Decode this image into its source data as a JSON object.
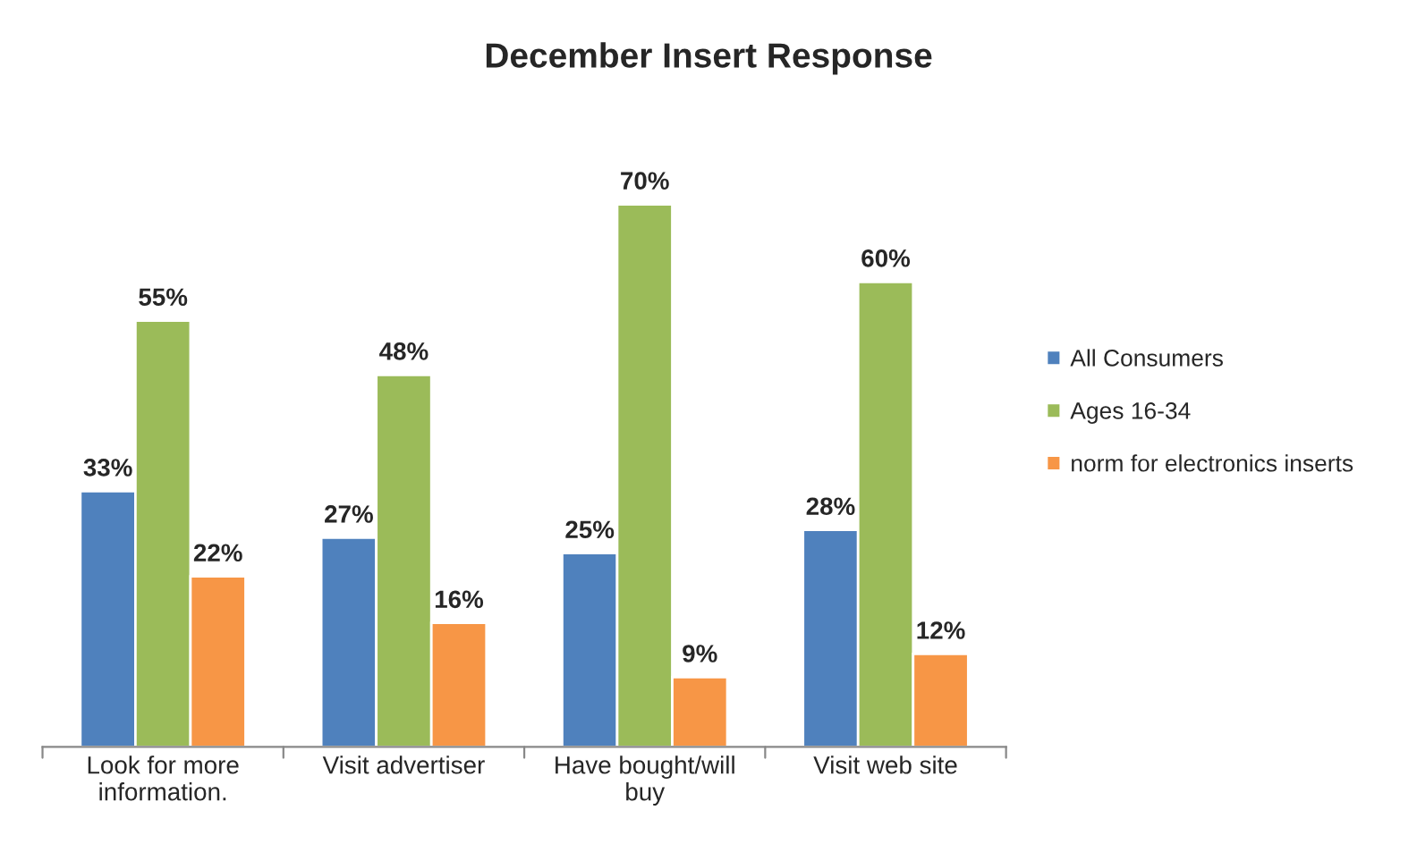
{
  "chart_data": {
    "type": "bar",
    "title": "December Insert Response",
    "categories": [
      "Look for more\ninformation.",
      "Visit advertiser",
      "Have bought/will\nbuy",
      "Visit web site"
    ],
    "series": [
      {
        "name": "All Consumers",
        "color": "#4f81bd",
        "values": [
          33,
          27,
          25,
          28
        ],
        "value_labels": [
          "33%",
          "27%",
          "25%",
          "28%"
        ]
      },
      {
        "name": "Ages 16-34",
        "color": "#9bbb59",
        "values": [
          55,
          48,
          70,
          60
        ],
        "value_labels": [
          "55%",
          "48%",
          "70%",
          "60%"
        ]
      },
      {
        "name": "norm for electronics inserts",
        "color": "#f79646",
        "values": [
          22,
          16,
          9,
          12
        ],
        "value_labels": [
          "22%",
          "16%",
          "9%",
          "12%"
        ]
      }
    ],
    "legend": "right",
    "grid": false
  }
}
